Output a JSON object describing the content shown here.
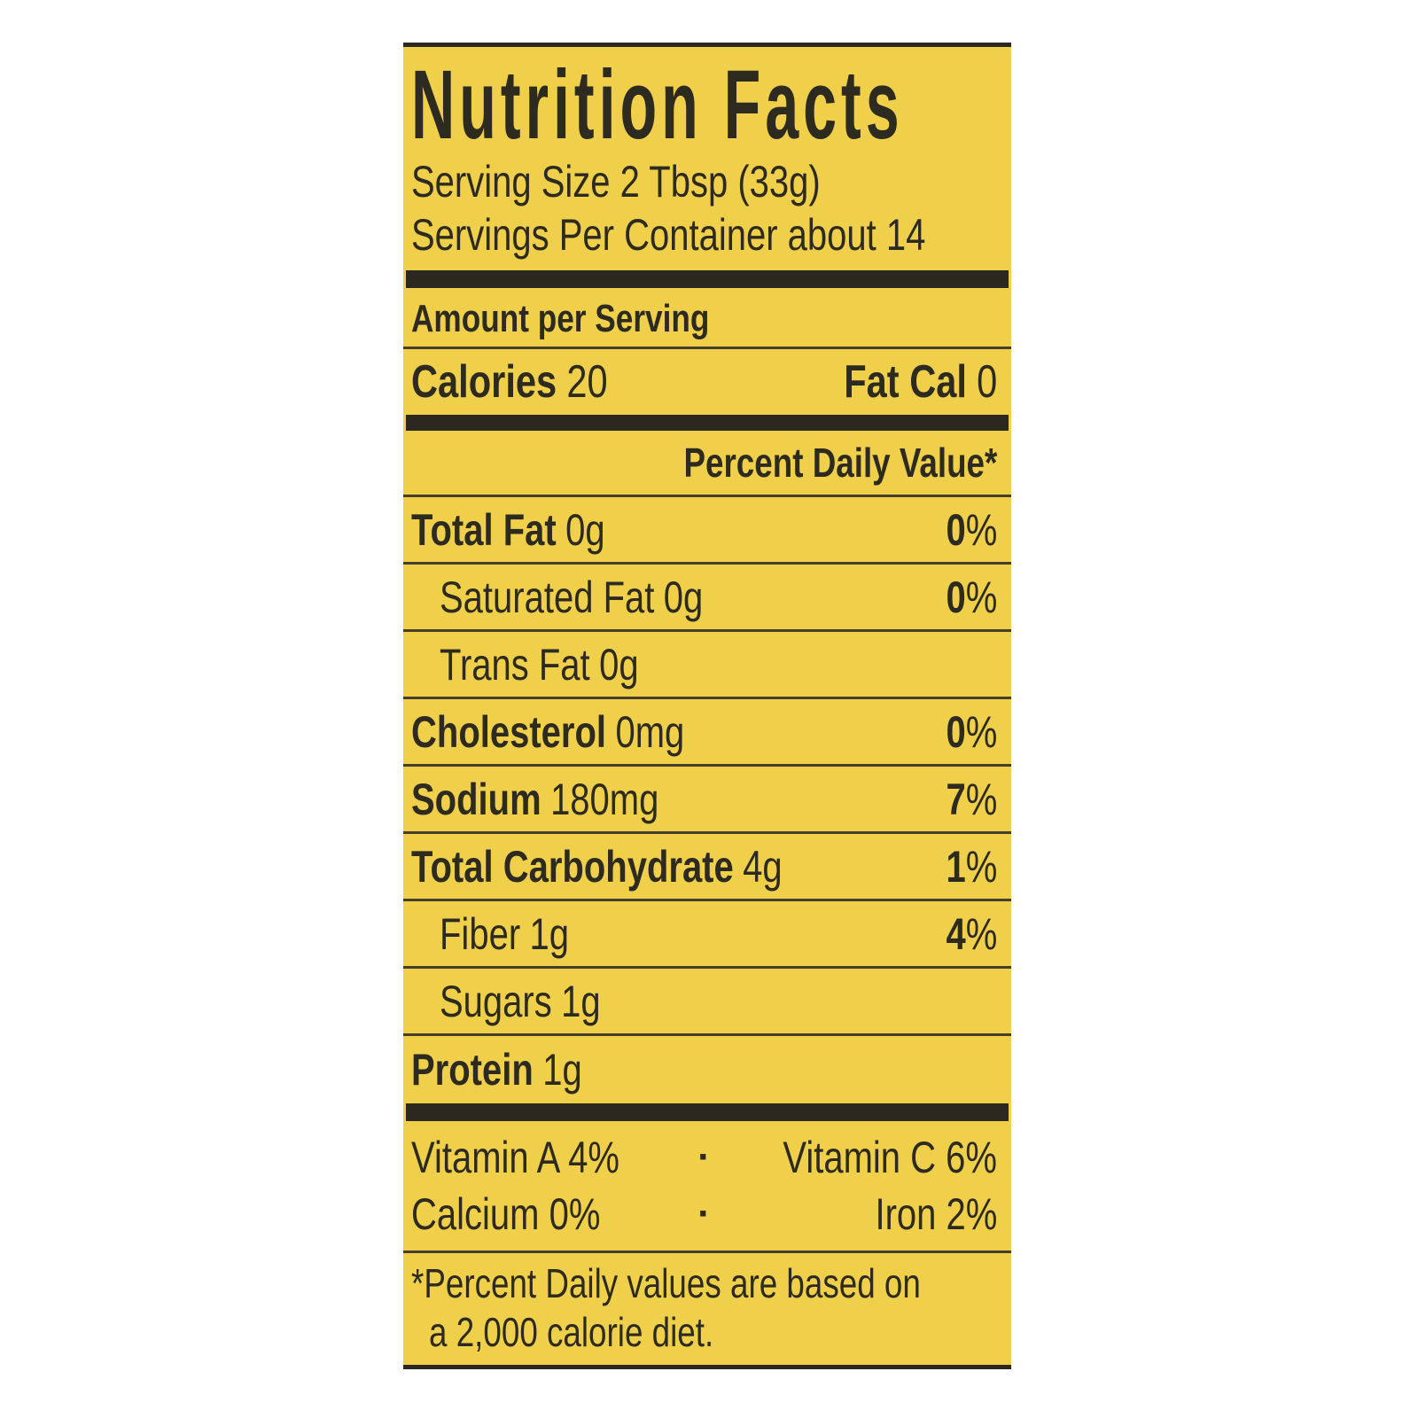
{
  "label": {
    "title": "Nutrition Facts",
    "serving_size": "Serving Size 2 Tbsp (33g)",
    "servings_per_container": "Servings Per Container about 14",
    "amount_per_serving": "Amount per Serving",
    "calories_label": "Calories",
    "calories_value": "20",
    "fat_cal_label": "Fat Cal",
    "fat_cal_value": "0",
    "percent_daily_value_header": "Percent Daily Value*",
    "pct": "%",
    "rows": [
      {
        "name": "Total Fat",
        "amount": "0g",
        "dv": "0"
      },
      {
        "name": "Saturated Fat",
        "amount": "0g",
        "dv": "0"
      },
      {
        "name": "Trans Fat",
        "amount": "0g"
      },
      {
        "name": "Cholesterol",
        "amount": "0mg",
        "dv": "0"
      },
      {
        "name": "Sodium",
        "amount": "180mg",
        "dv": "7"
      },
      {
        "name": "Total Carbohydrate",
        "amount": "4g",
        "dv": "1"
      },
      {
        "name": "Fiber",
        "amount": "1g",
        "dv": "4"
      },
      {
        "name": "Sugars",
        "amount": "1g"
      },
      {
        "name": "Protein",
        "amount": "1g"
      }
    ],
    "vitamins": [
      {
        "left": "Vitamin A 4%",
        "separator": "·",
        "right": "Vitamin C 6%"
      },
      {
        "left": "Calcium 0%",
        "separator": "·",
        "right": "Iron 2%"
      }
    ],
    "footnote_line1": "*Percent Daily values are based on",
    "footnote_line2": "a 2,000 calorie diet."
  },
  "colors": {
    "label_bg": "#f0d04b",
    "text": "#2d2a20",
    "bar": "#2b2820",
    "rule": "#45402b",
    "page_bg": "#ffffff"
  }
}
